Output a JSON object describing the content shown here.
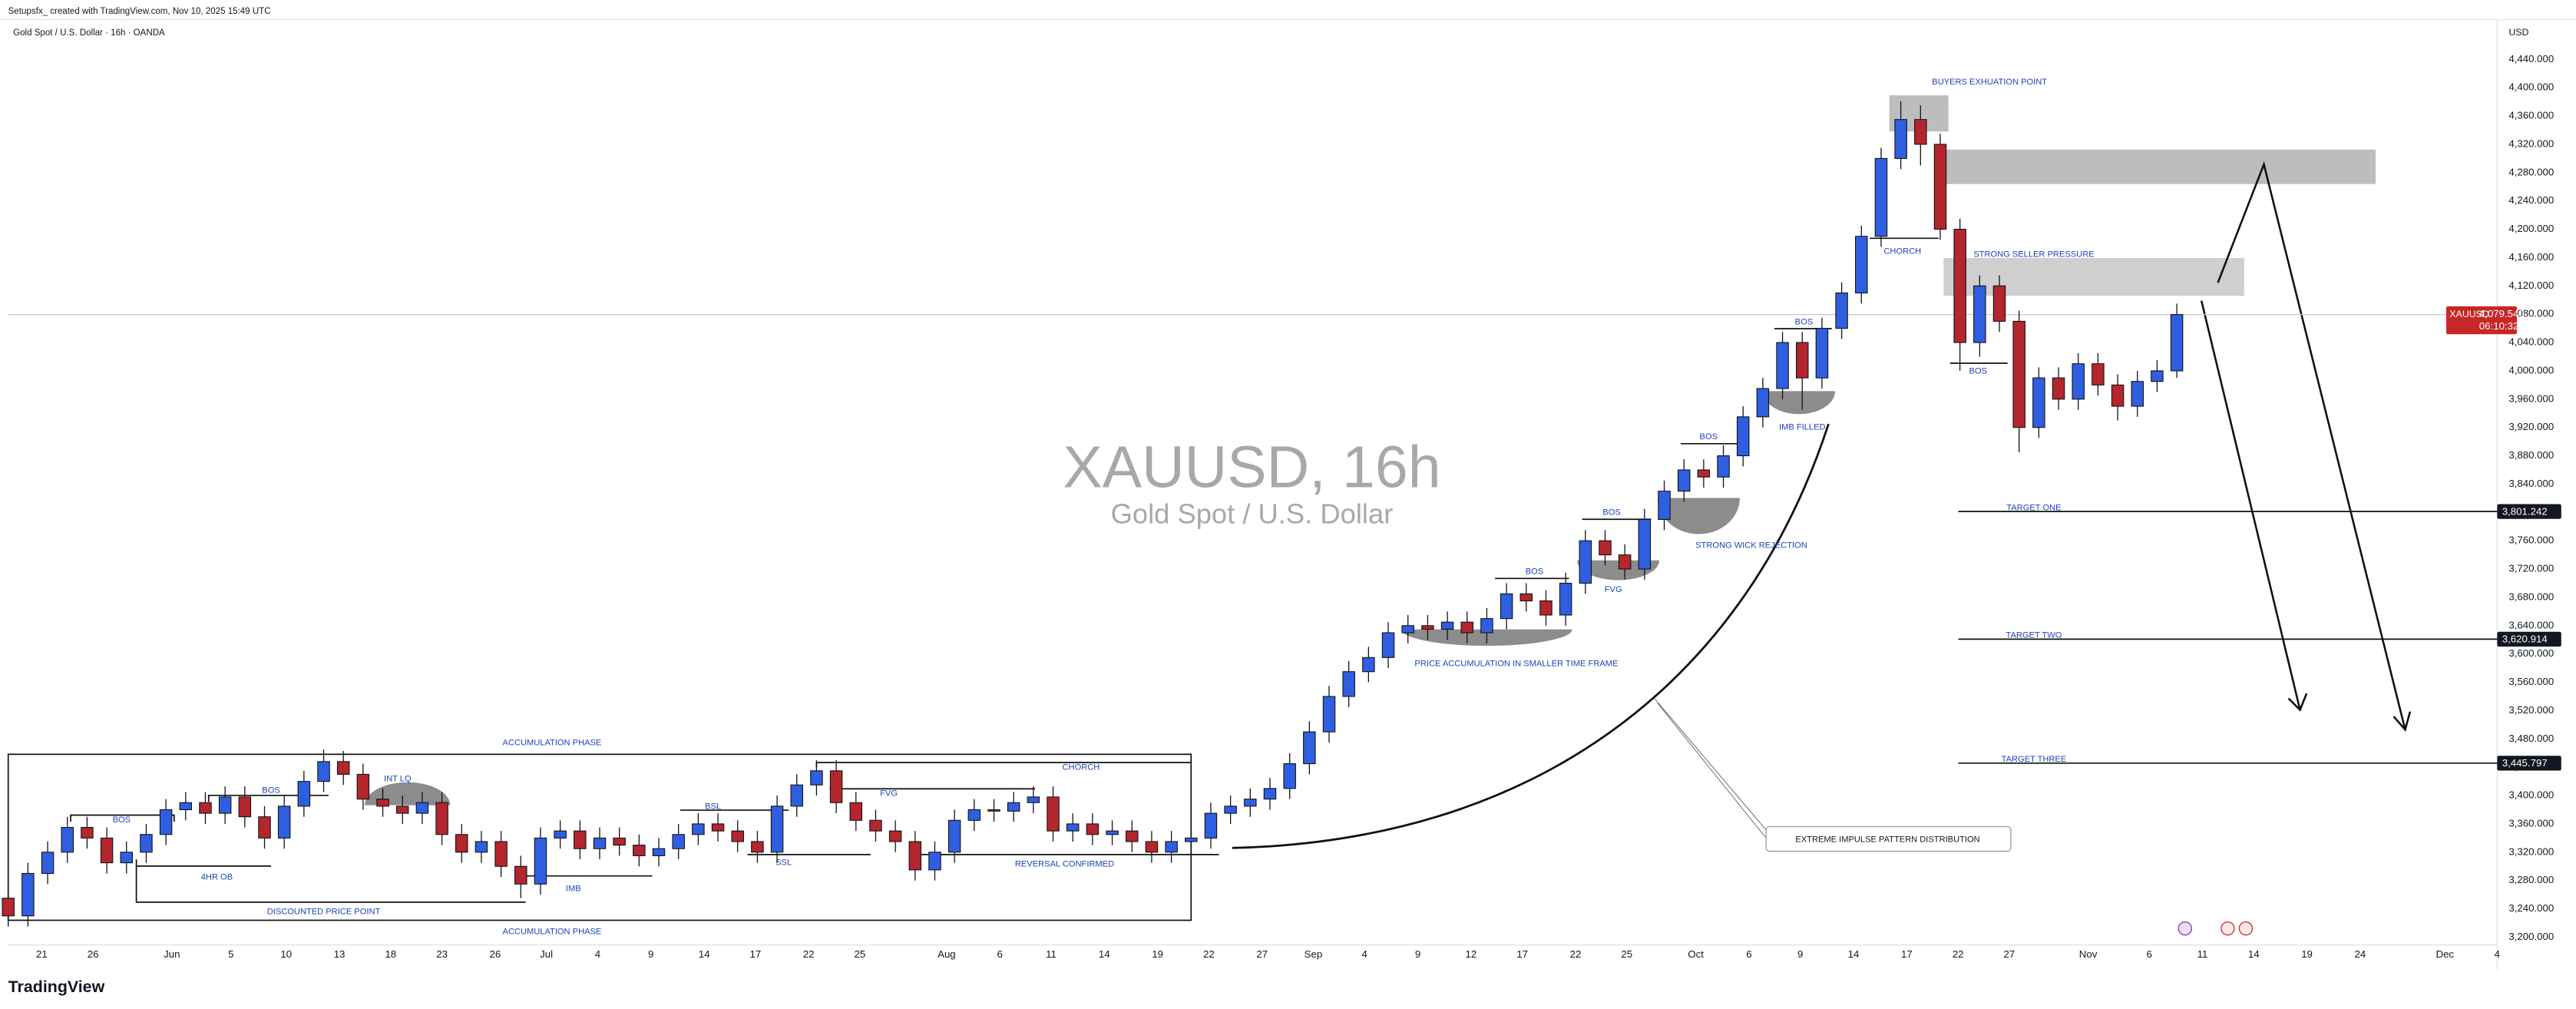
{
  "header": "Setupsfx_ created with TradingView.com, Nov 10, 2025 15:49 UTC",
  "brand": "TradingView",
  "chart_data": {
    "type": "candlestick",
    "title": "Gold Spot / U.S. Dollar · 16h · OANDA",
    "watermark": "XAUUSD, 16h",
    "watermark_subtitle": "Gold Spot / U.S. Dollar",
    "y_axis_label": "USD",
    "symbol": "XAUUSD",
    "up_color": "#2f5fe0",
    "down_color": "#b3262e",
    "grid": false,
    "open": [
      3255,
      3230,
      3290,
      3320,
      3355,
      3340,
      3305,
      3320,
      3345,
      3380,
      3390,
      3375,
      3398,
      3370,
      3340,
      3385,
      3420,
      3448,
      3430,
      3395,
      3385,
      3375,
      3390,
      3345,
      3320,
      3335,
      3300,
      3275,
      3340,
      3350,
      3325,
      3340,
      3330,
      3315,
      3325,
      3345,
      3360,
      3350,
      3335,
      3320,
      3385,
      3415,
      3435,
      3390,
      3365,
      3350,
      3335,
      3295,
      3320,
      3365,
      3380,
      3378,
      3390,
      3398,
      3350,
      3360,
      3345,
      3350,
      3335,
      3320,
      3335,
      3340,
      3375,
      3385,
      3395,
      3410,
      3445,
      3490,
      3540,
      3575,
      3595,
      3630,
      3640,
      3635,
      3645,
      3630,
      3650,
      3685,
      3675,
      3655,
      3700,
      3760,
      3740,
      3720,
      3790,
      3830,
      3860,
      3850,
      3880,
      3935,
      3975,
      4040,
      3990,
      4060,
      4110,
      4190,
      4300,
      4355,
      4320,
      4200,
      4040,
      4120,
      4070,
      3920,
      3990,
      3960,
      4010,
      3980,
      3950,
      3985,
      4000
    ],
    "high": [
      3270,
      3305,
      3335,
      3370,
      3370,
      3355,
      3335,
      3360,
      3395,
      3405,
      3405,
      3413,
      3413,
      3385,
      3400,
      3435,
      3465,
      3463,
      3445,
      3410,
      3400,
      3405,
      3405,
      3360,
      3350,
      3350,
      3315,
      3355,
      3365,
      3365,
      3355,
      3355,
      3345,
      3340,
      3360,
      3375,
      3375,
      3365,
      3350,
      3400,
      3430,
      3450,
      3450,
      3405,
      3380,
      3365,
      3350,
      3335,
      3380,
      3395,
      3395,
      3405,
      3413,
      3413,
      3375,
      3375,
      3365,
      3365,
      3350,
      3350,
      3355,
      3390,
      3400,
      3410,
      3425,
      3460,
      3505,
      3555,
      3590,
      3610,
      3645,
      3655,
      3655,
      3660,
      3660,
      3665,
      3700,
      3700,
      3690,
      3715,
      3775,
      3775,
      3755,
      3805,
      3845,
      3875,
      3875,
      3895,
      3950,
      3990,
      4055,
      4055,
      4075,
      4125,
      4205,
      4315,
      4381,
      4375,
      4335,
      4215,
      4135,
      4135,
      4085,
      4005,
      4005,
      4025,
      4025,
      3995,
      4000,
      4015,
      4095
    ],
    "low": [
      3215,
      3215,
      3275,
      3305,
      3325,
      3290,
      3290,
      3305,
      3330,
      3365,
      3360,
      3360,
      3355,
      3325,
      3325,
      3370,
      3405,
      3415,
      3380,
      3370,
      3360,
      3360,
      3330,
      3305,
      3305,
      3285,
      3255,
      3260,
      3325,
      3310,
      3310,
      3315,
      3300,
      3300,
      3310,
      3330,
      3335,
      3320,
      3305,
      3305,
      3370,
      3400,
      3375,
      3350,
      3335,
      3320,
      3280,
      3280,
      3305,
      3350,
      3363,
      3363,
      3375,
      3335,
      3335,
      3330,
      3330,
      3320,
      3305,
      3305,
      3320,
      3325,
      3360,
      3370,
      3380,
      3395,
      3430,
      3475,
      3525,
      3560,
      3580,
      3615,
      3620,
      3620,
      3615,
      3615,
      3635,
      3660,
      3640,
      3640,
      3685,
      3725,
      3705,
      3705,
      3775,
      3815,
      3835,
      3835,
      3865,
      3920,
      3960,
      3945,
      3975,
      4045,
      4095,
      4175,
      4285,
      4290,
      4185,
      4000,
      4020,
      4055,
      3885,
      3905,
      3945,
      3945,
      3965,
      3930,
      3935,
      3970,
      3990
    ],
    "close": [
      3230,
      3290,
      3320,
      3355,
      3340,
      3305,
      3320,
      3345,
      3380,
      3390,
      3375,
      3398,
      3370,
      3340,
      3385,
      3420,
      3448,
      3430,
      3395,
      3385,
      3375,
      3390,
      3345,
      3320,
      3335,
      3300,
      3275,
      3340,
      3350,
      3325,
      3340,
      3330,
      3315,
      3325,
      3345,
      3360,
      3350,
      3335,
      3320,
      3385,
      3415,
      3435,
      3390,
      3365,
      3350,
      3335,
      3295,
      3320,
      3365,
      3380,
      3378,
      3390,
      3398,
      3350,
      3360,
      3345,
      3350,
      3335,
      3320,
      3335,
      3340,
      3375,
      3385,
      3395,
      3410,
      3445,
      3490,
      3540,
      3575,
      3595,
      3630,
      3640,
      3635,
      3645,
      3630,
      3650,
      3685,
      3675,
      3655,
      3700,
      3760,
      3740,
      3720,
      3790,
      3830,
      3860,
      3850,
      3880,
      3935,
      3975,
      4040,
      3990,
      4060,
      4110,
      4190,
      4300,
      4355,
      4320,
      4200,
      4040,
      4120,
      4070,
      3920,
      3990,
      3960,
      4010,
      3980,
      3950,
      3985,
      4000,
      4079.54
    ],
    "xlim": [
      0,
      126.25
    ],
    "xticks": [
      {
        "value": 1.7,
        "label": "21"
      },
      {
        "value": 4.3,
        "label": "26"
      },
      {
        "value": 8.3,
        "label": "Jun"
      },
      {
        "value": 11.3,
        "label": "5"
      },
      {
        "value": 14.1,
        "label": "10"
      },
      {
        "value": 16.8,
        "label": "13"
      },
      {
        "value": 19.4,
        "label": "18"
      },
      {
        "value": 22,
        "label": "23"
      },
      {
        "value": 24.7,
        "label": "26"
      },
      {
        "value": 27.3,
        "label": "Jul"
      },
      {
        "value": 29.9,
        "label": "4"
      },
      {
        "value": 32.6,
        "label": "9"
      },
      {
        "value": 35.3,
        "label": "14"
      },
      {
        "value": 37.9,
        "label": "17"
      },
      {
        "value": 40.6,
        "label": "22"
      },
      {
        "value": 43.2,
        "label": "25"
      },
      {
        "value": 47.6,
        "label": "Aug"
      },
      {
        "value": 50.3,
        "label": "6"
      },
      {
        "value": 52.9,
        "label": "11"
      },
      {
        "value": 55.6,
        "label": "14"
      },
      {
        "value": 58.3,
        "label": "19"
      },
      {
        "value": 60.9,
        "label": "22"
      },
      {
        "value": 63.6,
        "label": "27"
      },
      {
        "value": 66.2,
        "label": "Sep"
      },
      {
        "value": 68.8,
        "label": "4"
      },
      {
        "value": 71.5,
        "label": "9"
      },
      {
        "value": 74.2,
        "label": "12"
      },
      {
        "value": 76.8,
        "label": "17"
      },
      {
        "value": 79.5,
        "label": "22"
      },
      {
        "value": 82.1,
        "label": "25"
      },
      {
        "value": 85.6,
        "label": "Oct"
      },
      {
        "value": 88.3,
        "label": "6"
      },
      {
        "value": 90.9,
        "label": "9"
      },
      {
        "value": 93.6,
        "label": "14"
      },
      {
        "value": 96.3,
        "label": "17"
      },
      {
        "value": 98.9,
        "label": "22"
      },
      {
        "value": 101.5,
        "label": "27"
      },
      {
        "value": 105.5,
        "label": "Nov"
      },
      {
        "value": 108.6,
        "label": "6"
      },
      {
        "value": 111.3,
        "label": "11"
      },
      {
        "value": 113.9,
        "label": "14"
      },
      {
        "value": 116.6,
        "label": "19"
      },
      {
        "value": 119.3,
        "label": "24"
      },
      {
        "value": 123.6,
        "label": "Dec"
      },
      {
        "value": 126.25,
        "label": "4"
      }
    ],
    "ylim": [
      3189,
      4496
    ],
    "yticks": [
      {
        "value": 3200,
        "label": "3,200.000"
      },
      {
        "value": 3240,
        "label": "3,240.000"
      },
      {
        "value": 3280,
        "label": "3,280.000"
      },
      {
        "value": 3320,
        "label": "3,320.000"
      },
      {
        "value": 3360,
        "label": "3,360.000"
      },
      {
        "value": 3400,
        "label": "3,400.000"
      },
      {
        "value": 3440,
        "label": "3,440.000"
      },
      {
        "value": 3480,
        "label": "3,480.000"
      },
      {
        "value": 3520,
        "label": "3,520.000"
      },
      {
        "value": 3560,
        "label": "3,560.000"
      },
      {
        "value": 3600,
        "label": "3,600.000"
      },
      {
        "value": 3640,
        "label": "3,640.000"
      },
      {
        "value": 3680,
        "label": "3,680.000"
      },
      {
        "value": 3720,
        "label": "3,720.000"
      },
      {
        "value": 3760,
        "label": "3,760.000"
      },
      {
        "value": 3800,
        "label": "3,800.000"
      },
      {
        "value": 3840,
        "label": "3,840.000"
      },
      {
        "value": 3880,
        "label": "3,880.000"
      },
      {
        "value": 3920,
        "label": "3,920.000"
      },
      {
        "value": 3960,
        "label": "3,960.000"
      },
      {
        "value": 4000,
        "label": "4,000.000"
      },
      {
        "value": 4040,
        "label": "4,040.000"
      },
      {
        "value": 4080,
        "label": "4,080.000"
      },
      {
        "value": 4120,
        "label": "4,120.000"
      },
      {
        "value": 4160,
        "label": "4,160.000"
      },
      {
        "value": 4200,
        "label": "4,200.000"
      },
      {
        "value": 4240,
        "label": "4,240.000"
      },
      {
        "value": 4280,
        "label": "4,280.000"
      },
      {
        "value": 4320,
        "label": "4,320.000"
      },
      {
        "value": 4360,
        "label": "4,360.000"
      },
      {
        "value": 4400,
        "label": "4,400.000"
      },
      {
        "value": 4440,
        "label": "4,440.000"
      }
    ],
    "last_price": 4079.54,
    "last_price_label": "4,079.540",
    "countdown": "06:10:32",
    "targets": [
      {
        "name": "TARGET ONE",
        "value": 3801.242,
        "value_label": "3,801.242"
      },
      {
        "name": "TARGET TWO",
        "value": 3620.914,
        "value_label": "3,620.914"
      },
      {
        "name": "TARGET THREE",
        "value": 3445.797,
        "value_label": "3,445.797"
      }
    ],
    "annotations": [
      "ACCUMULATION PHASE",
      "ACCUMULATION PHASE",
      "BOS",
      "BOS",
      "4HR OB",
      "DISCOUNTED PRICE POINT",
      "INT LQ",
      "IMB",
      "BSL",
      "SSL",
      "FVG",
      "CHORCH",
      "REVERSAL CONFIRMED",
      "PRICE ACCUMULATION IN SMALLER TIME FRAME",
      "BOS",
      "FVG",
      "BOS",
      "STRONG WICK REJECTION",
      "BOS",
      "IMB FILLED",
      "BOS",
      "CHORCH",
      "BUYERS EXHUATION POINT",
      "STRONG SELLER PRESSURE",
      "BOS",
      "EXTREME IMPULSE PATTERN DISTRIBUTION"
    ]
  }
}
